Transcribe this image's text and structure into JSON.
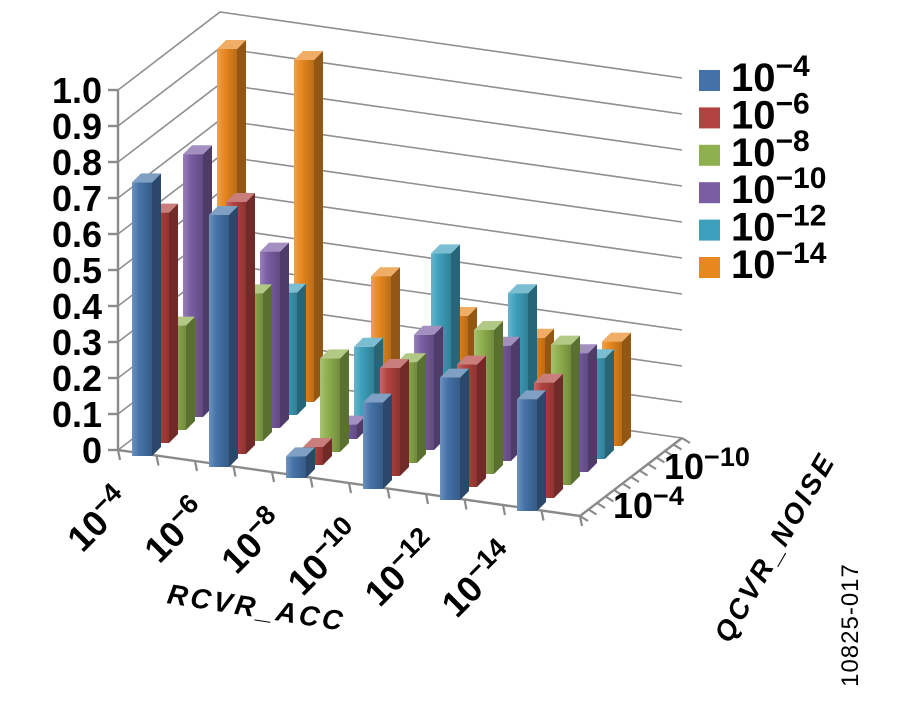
{
  "figure_label": "10825-017",
  "colors": {
    "background": "#ffffff",
    "axis_line": "#8a8a8a",
    "gridline": "#8f8f8f",
    "text": "#000000"
  },
  "chart_data": {
    "type": "bar",
    "projection": "3d-column",
    "title": "",
    "grid": true,
    "legend": {
      "position": "top-right"
    },
    "categories_axis": {
      "label": "RCVR_ACC",
      "tick_labels": [
        {
          "m": "10",
          "e": "−4"
        },
        {
          "m": "10",
          "e": "−6"
        },
        {
          "m": "10",
          "e": "−8"
        },
        {
          "m": "10",
          "e": "−10"
        },
        {
          "m": "10",
          "e": "−12"
        },
        {
          "m": "10",
          "e": "−14"
        }
      ]
    },
    "value_axis": {
      "min": 0,
      "max": 1.0,
      "step": 0.1,
      "tick_labels": [
        "0",
        "0.1",
        "0.2",
        "0.3",
        "0.4",
        "0.5",
        "0.6",
        "0.7",
        "0.8",
        "0.9",
        "1.0"
      ]
    },
    "depth_axis": {
      "label": "QCVR_NOISE",
      "tick_labels": [
        {
          "m": "10",
          "e": "−4",
          "row": 0
        },
        {
          "m": "10",
          "e": "−10",
          "row": 3
        }
      ]
    },
    "series": [
      {
        "name": {
          "m": "10",
          "e": "−4"
        },
        "color": "#4472a8",
        "values": [
          0.76,
          0.7,
          0.06,
          0.24,
          0.34,
          0.31
        ]
      },
      {
        "name": {
          "m": "10",
          "e": "−6"
        },
        "color": "#b2423f",
        "values": [
          0.64,
          0.7,
          0.05,
          0.3,
          0.34,
          0.32
        ]
      },
      {
        "name": {
          "m": "10",
          "e": "−8"
        },
        "color": "#8eb04d",
        "values": [
          0.29,
          0.41,
          0.26,
          0.28,
          0.4,
          0.39
        ]
      },
      {
        "name": {
          "m": "10",
          "e": "−10"
        },
        "color": "#7a5da3",
        "values": [
          0.73,
          0.49,
          0.04,
          0.32,
          0.32,
          0.33
        ]
      },
      {
        "name": {
          "m": "10",
          "e": "−12"
        },
        "color": "#3da0bc",
        "values": [
          0.32,
          0.34,
          0.22,
          0.51,
          0.43,
          0.28
        ]
      },
      {
        "name": {
          "m": "10",
          "e": "−14"
        },
        "color": "#e8871e",
        "values": [
          0.95,
          0.95,
          0.38,
          0.3,
          0.27,
          0.29
        ]
      }
    ]
  }
}
